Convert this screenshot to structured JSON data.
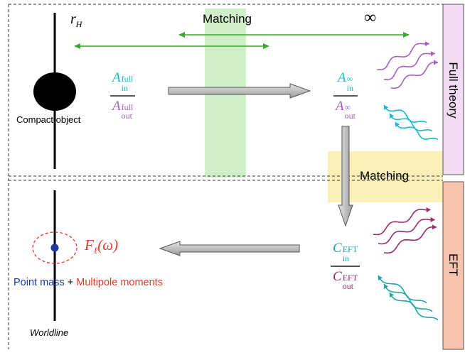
{
  "labels": {
    "horizon": "r",
    "horizon_sub": "H",
    "matching_top": "Matching",
    "infinity": "∞",
    "matching_mid": "Matching",
    "compact_object": "Compact object",
    "point_mass": "Point mass",
    "plus": "+",
    "multipole": "Multipole moments",
    "worldline": "Worldline",
    "full_theory": "Full theory",
    "eft": "EFT",
    "response_fn": "F",
    "response_sub": "ℓ",
    "response_arg": "(ω)"
  },
  "fractions": {
    "full": {
      "base": "A",
      "num_sup": "full",
      "num_sub": "in",
      "den_sup": "full",
      "den_sub": "out"
    },
    "inf": {
      "base": "A",
      "num_sup": "∞",
      "num_sub": "in",
      "den_sup": "∞",
      "den_sub": "out"
    },
    "eft": {
      "base": "C",
      "num_sup": "EFT",
      "num_sub": "in",
      "den_sup": "EFT",
      "den_sub": "out"
    }
  },
  "colors": {
    "cyan": "#1ab8d6",
    "purple": "#a85cc0",
    "teal": "#1fa6a6",
    "maroon": "#9b2a6a",
    "green": "#3aa82a",
    "red": "#e8382a",
    "blue": "#1a3aa0",
    "full_band": "#f2dcf4",
    "eft_band": "#f6c4ae",
    "matching_green": "#c8ecc0",
    "matching_yellow": "#fbf0b0"
  }
}
